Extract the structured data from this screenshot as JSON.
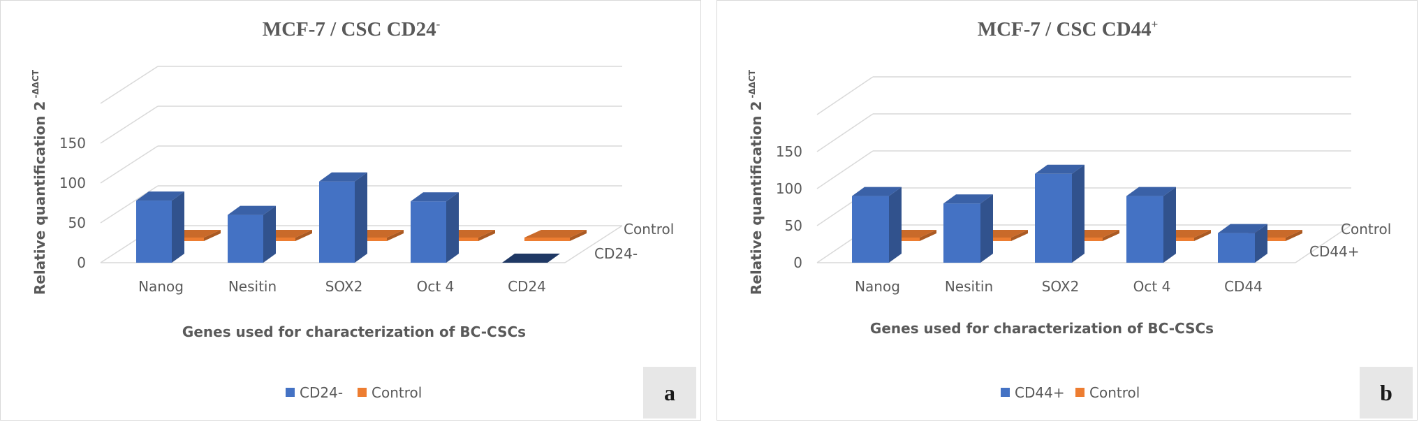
{
  "colors": {
    "series_front": "#4472c4",
    "series_back": "#ed7d31",
    "dark_face": "#1f3864",
    "grid": "#d9d9d9",
    "text": "#595959"
  },
  "chart_data": [
    {
      "type": "bar",
      "subtype": "3d-column",
      "panel_label": "a",
      "title_main": "MCF-7 / CSC CD24",
      "title_sup": "-",
      "xlabel": "Genes used for characterization of BC-CSCs",
      "ylabel_main": "Relative quantification 2",
      "ylabel_sup": " -ΔΔCT",
      "categories": [
        "Nanog",
        "Nesitin",
        "SOX2",
        "Oct 4",
        "CD24"
      ],
      "y_ticks": [
        "0",
        "50",
        "100",
        "150"
      ],
      "ylim": [
        0,
        200
      ],
      "grid": true,
      "legend_position": "bottom",
      "series": [
        {
          "name": "CD24-",
          "values": [
            78,
            60,
            102,
            77,
            0
          ]
        },
        {
          "name": "Control",
          "values": [
            1,
            1,
            1,
            1,
            1
          ]
        }
      ],
      "depth_labels": [
        "Control",
        "CD24-"
      ]
    },
    {
      "type": "bar",
      "subtype": "3d-column",
      "panel_label": "b",
      "title_main": "MCF-7 / CSC CD44",
      "title_sup": "+",
      "xlabel": "Genes used for characterization of BC-CSCs",
      "ylabel_main": "Relative quantification 2",
      "ylabel_sup": " -ΔΔCT",
      "categories": [
        "Nanog",
        "Nesitin",
        "SOX2",
        "Oct 4",
        "CD44"
      ],
      "y_ticks": [
        "0",
        "50",
        "100",
        "150"
      ],
      "ylim": [
        0,
        200
      ],
      "grid": true,
      "legend_position": "bottom",
      "series": [
        {
          "name": "CD44+",
          "values": [
            90,
            80,
            120,
            90,
            40
          ]
        },
        {
          "name": "Control",
          "values": [
            1,
            1,
            1,
            1,
            1
          ]
        }
      ],
      "depth_labels": [
        "Control",
        "CD44+"
      ]
    }
  ]
}
